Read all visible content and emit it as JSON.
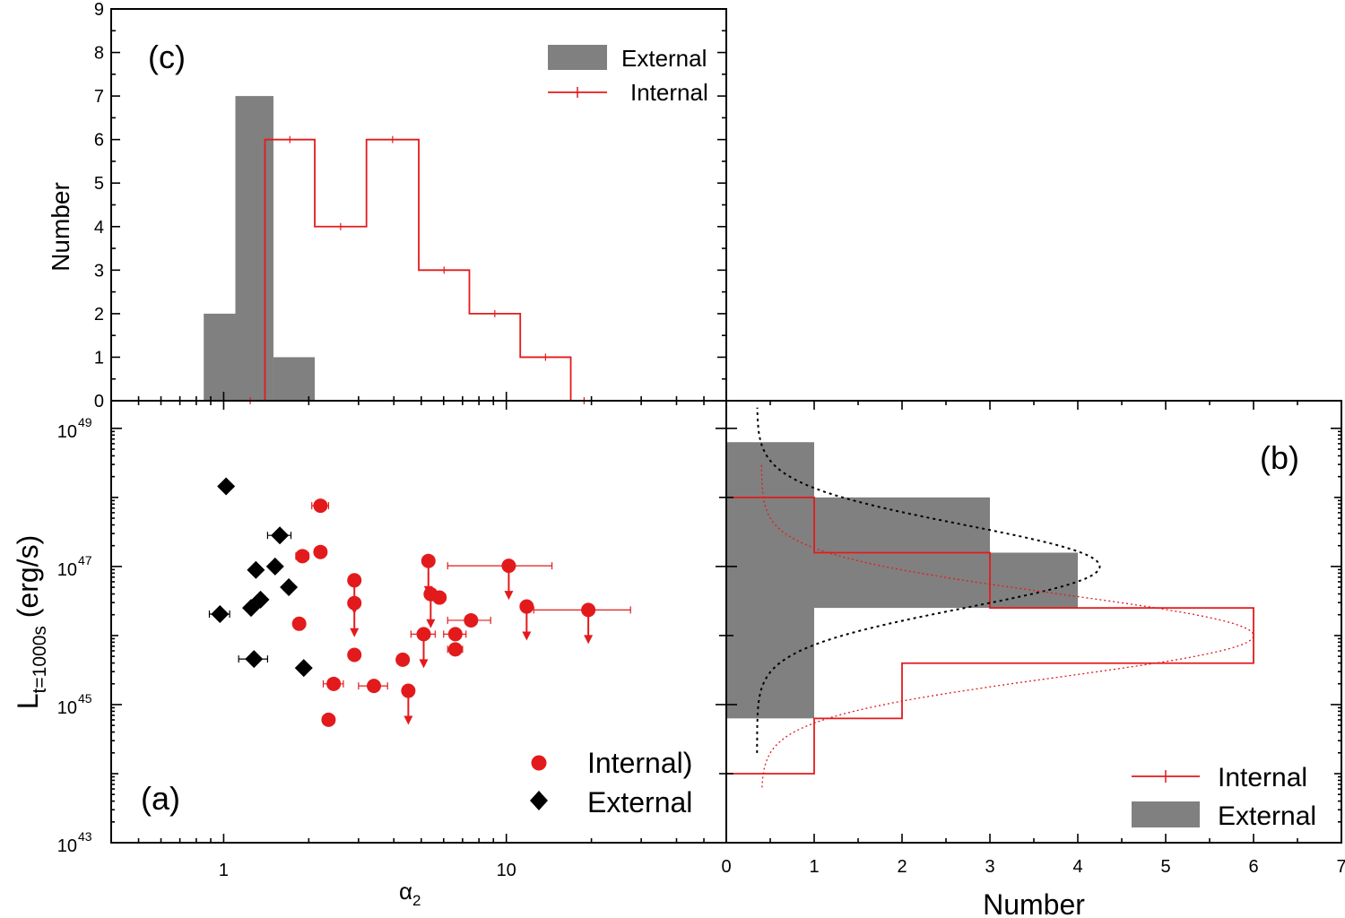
{
  "chart_data": [
    {
      "panel": "(c)",
      "type": "histogram",
      "ylabel": "Number",
      "xscale": "log",
      "xlim": [
        0.4,
        60
      ],
      "ylim": [
        0,
        9
      ],
      "y_tick_labels": [
        "0",
        "1",
        "2",
        "3",
        "4",
        "5",
        "6",
        "7",
        "8",
        "9"
      ],
      "legend": {
        "position": "top-right",
        "entries": [
          "External",
          "Internal"
        ]
      },
      "series": [
        {
          "name": "External",
          "style": "filled-gray",
          "bins": [
            {
              "x0": 0.85,
              "x1": 1.1,
              "value": 2
            },
            {
              "x0": 1.1,
              "x1": 1.5,
              "value": 7
            },
            {
              "x0": 1.5,
              "x1": 2.1,
              "value": 1
            }
          ]
        },
        {
          "name": "Internal",
          "style": "red-step",
          "bins": [
            {
              "x0": 1.1,
              "x1": 1.4,
              "value": 0
            },
            {
              "x0": 1.4,
              "x1": 2.1,
              "value": 6
            },
            {
              "x0": 2.1,
              "x1": 3.2,
              "value": 4
            },
            {
              "x0": 3.2,
              "x1": 4.9,
              "value": 6
            },
            {
              "x0": 4.9,
              "x1": 7.4,
              "value": 3
            },
            {
              "x0": 7.4,
              "x1": 11.2,
              "value": 2
            },
            {
              "x0": 11.2,
              "x1": 16.9,
              "value": 1
            },
            {
              "x0": 16.9,
              "x1": 21,
              "value": 0
            }
          ]
        }
      ]
    },
    {
      "panel": "(a)",
      "type": "scatter",
      "xlabel": "α2",
      "ylabel": "L_t=1000s (erg/s)",
      "xscale": "log",
      "yscale": "log",
      "xlim": [
        0.4,
        60
      ],
      "ylim": [
        43,
        49.4
      ],
      "x_tick_labels": [
        "1",
        "10"
      ],
      "y_tick_labels": [
        "10^49",
        "10^47",
        "10^45",
        "10^43"
      ],
      "legend": {
        "position": "bottom-right",
        "entries": [
          "Internal)",
          "External"
        ]
      },
      "series": [
        {
          "name": "Internal",
          "marker": "red-circle",
          "points": [
            {
              "x": 2.2,
              "y": 47.88,
              "xerr": 0.15
            },
            {
              "x": 2.2,
              "y": 47.21
            },
            {
              "x": 1.9,
              "y": 47.15,
              "xerr": 0.1
            },
            {
              "x": 2.9,
              "y": 46.8,
              "upper": true
            },
            {
              "x": 2.9,
              "y": 46.47,
              "upper": true
            },
            {
              "x": 1.85,
              "y": 46.17
            },
            {
              "x": 2.9,
              "y": 45.72
            },
            {
              "x": 2.45,
              "y": 45.3,
              "xerr": 0.2
            },
            {
              "x": 2.35,
              "y": 44.78
            },
            {
              "x": 3.4,
              "y": 45.27,
              "xerr": 0.4
            },
            {
              "x": 4.3,
              "y": 45.65
            },
            {
              "x": 4.5,
              "y": 45.2,
              "upper": true
            },
            {
              "x": 5.3,
              "y": 47.08,
              "upper": true
            },
            {
              "x": 5.4,
              "y": 46.6,
              "upper": true
            },
            {
              "x": 5.8,
              "y": 46.55,
              "xerr": 0.3
            },
            {
              "x": 5.1,
              "y": 46.02,
              "upper": true,
              "xerr": 0.5
            },
            {
              "x": 6.6,
              "y": 46.02,
              "xerr": 0.6
            },
            {
              "x": 6.6,
              "y": 45.8,
              "xerr": 0.4
            },
            {
              "x": 7.5,
              "y": 46.22,
              "xerr": 1.3
            },
            {
              "x": 10.2,
              "y": 47.01,
              "upper": true,
              "xerr_lo": 4.0,
              "xerr_hi": 4.3
            },
            {
              "x": 11.8,
              "y": 46.42,
              "upper": true
            },
            {
              "x": 19.5,
              "y": 46.37,
              "upper": true,
              "xerr_lo": 7.0,
              "xerr_hi": 8.0
            }
          ]
        },
        {
          "name": "External",
          "marker": "black-diamond",
          "points": [
            {
              "x": 1.02,
              "y": 48.16
            },
            {
              "x": 1.58,
              "y": 47.45,
              "xerr": 0.15
            },
            {
              "x": 1.52,
              "y": 47.0
            },
            {
              "x": 1.3,
              "y": 46.95
            },
            {
              "x": 1.7,
              "y": 46.7
            },
            {
              "x": 1.35,
              "y": 46.52
            },
            {
              "x": 1.25,
              "y": 46.4
            },
            {
              "x": 0.97,
              "y": 46.31,
              "xerr": 0.08
            },
            {
              "x": 1.28,
              "y": 45.66,
              "xerr": 0.15
            },
            {
              "x": 1.92,
              "y": 45.53
            }
          ]
        }
      ]
    },
    {
      "panel": "(b)",
      "type": "histogram-horizontal",
      "xlabel": "Number",
      "xlim": [
        0,
        7
      ],
      "x_tick_labels": [
        "0",
        "1",
        "2",
        "3",
        "4",
        "5",
        "6",
        "7"
      ],
      "legend": {
        "position": "bottom-right",
        "entries": [
          "Internal",
          "External"
        ]
      },
      "series": [
        {
          "name": "External",
          "style": "filled-gray",
          "bins": [
            {
              "y0": 44.8,
              "y1": 48.0,
              "value": 1
            },
            {
              "y0": 48.0,
              "y1": 48.8,
              "value": 1
            },
            {
              "y0": 47.2,
              "y1": 48.0,
              "value": 3
            },
            {
              "y0": 46.4,
              "y1": 47.2,
              "value": 4
            }
          ]
        },
        {
          "name": "Internal",
          "style": "red-step",
          "bins": [
            {
              "y0": 43.6,
              "y1": 44.0,
              "value": 0
            },
            {
              "y0": 44.0,
              "y1": 44.8,
              "value": 1
            },
            {
              "y0": 44.8,
              "y1": 45.6,
              "value": 2
            },
            {
              "y0": 45.6,
              "y1": 46.4,
              "value": 6
            },
            {
              "y0": 46.4,
              "y1": 47.2,
              "value": 3
            },
            {
              "y0": 47.2,
              "y1": 48.0,
              "value": 1
            },
            {
              "y0": 48.0,
              "y1": 48.4,
              "value": 0
            }
          ]
        }
      ],
      "fits": [
        {
          "name": "External",
          "color": "#000000",
          "amplitude": 3.9,
          "mu": 47.0,
          "sigma": 0.6,
          "offset": 0.35,
          "range": [
            44.3,
            49.3
          ]
        },
        {
          "name": "Internal",
          "color": "#e31a1c",
          "amplitude": 5.6,
          "mu": 46.0,
          "sigma": 0.6,
          "offset": 0.4,
          "range": [
            43.8,
            48.5
          ]
        }
      ]
    }
  ],
  "labels": {
    "panel_a": "(a)",
    "panel_b": "(b)",
    "panel_c": "(c)",
    "ylabel_c": "Number",
    "ylabel_a_main": "L",
    "ylabel_a_sub": "t=1000s",
    "ylabel_a_unit": " (erg/s)",
    "xlabel_a_alpha": "α",
    "xlabel_a_sub": "2",
    "xlabel_b": "Number",
    "leg_c_external": "External",
    "leg_c_internal": "Internal",
    "leg_a_internal": "Internal)",
    "leg_a_external": "External",
    "leg_b_internal": "Internal",
    "leg_b_external": "External"
  },
  "colors": {
    "red": "#e31a1c",
    "gray": "#808080",
    "black": "#000000"
  }
}
